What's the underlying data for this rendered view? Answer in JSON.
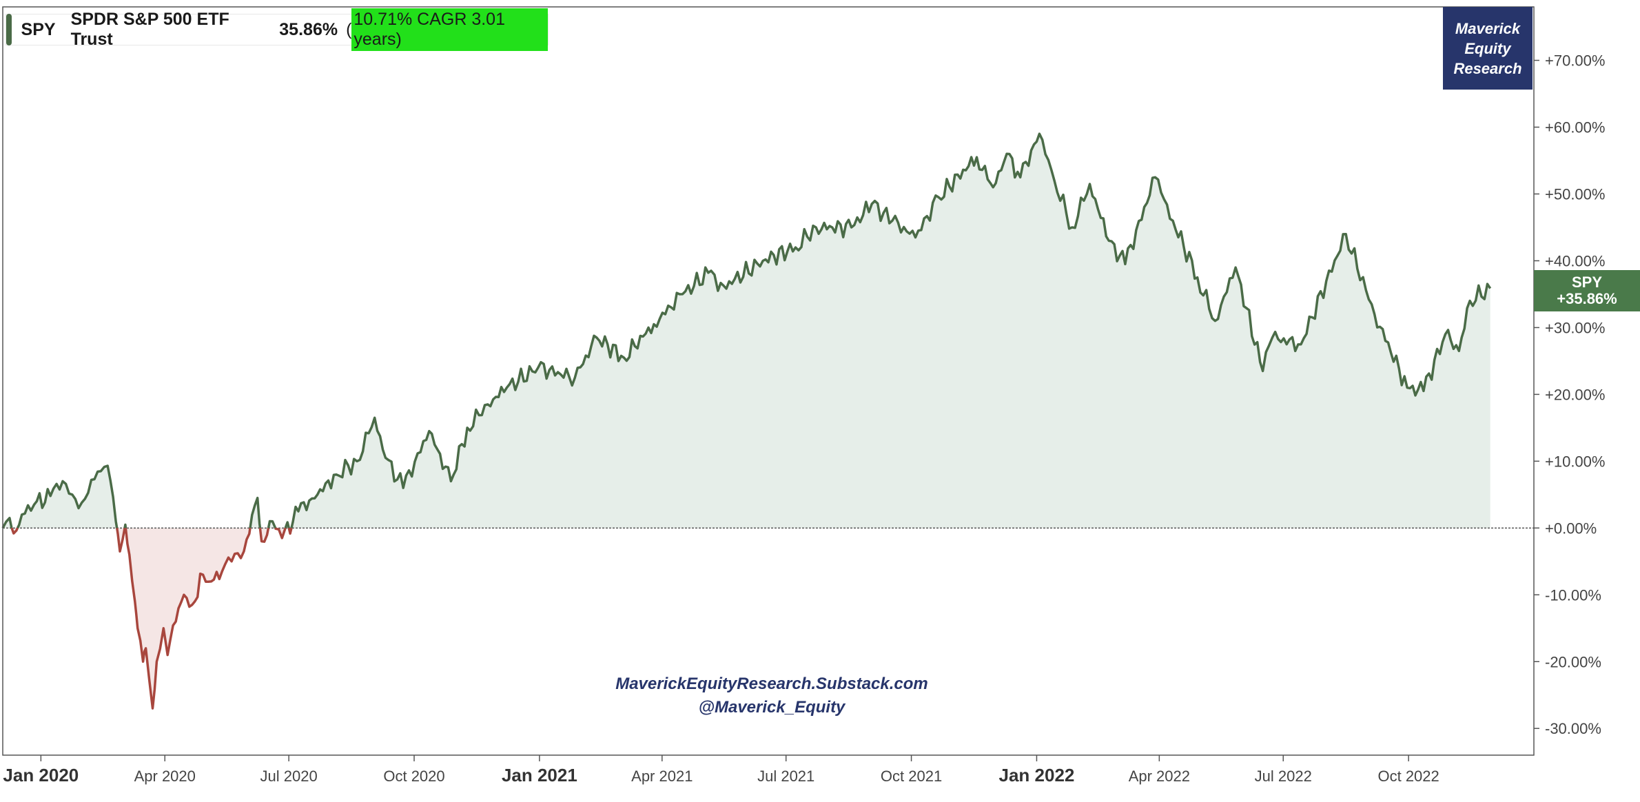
{
  "legend": {
    "symbol": "SPY",
    "name": "SPDR S&P 500 ETF Trust",
    "total_return": "35.86%",
    "cagr_open": "(",
    "cagr_text": "10.71% CAGR 3.01 years",
    "cagr_close": ")"
  },
  "logo": {
    "line1": "Maverick",
    "line2": "Equity",
    "line3": "Research"
  },
  "end_label": {
    "symbol": "SPY",
    "value": "+35.86%"
  },
  "watermark": {
    "line1": "MaverickEquityResearch.Substack.com",
    "line2": "@Maverick_Equity"
  },
  "colors": {
    "positive_line": "#4a6b47",
    "positive_fill": "#e6eee9",
    "negative_line": "#a8463d",
    "negative_fill": "#f5e6e5",
    "logo_bg": "#27356b",
    "cagr_highlight": "#22e01a",
    "end_label_bg": "#4a7a4a"
  },
  "chart_data": {
    "type": "area",
    "x_type": "date",
    "ylim": [
      -34,
      78
    ],
    "xlim": [
      "2019-12-04",
      "2023-01-01"
    ],
    "y_ticks": [
      70,
      60,
      50,
      40,
      30,
      20,
      10,
      0,
      -10,
      -20,
      -30
    ],
    "y_tick_labels": [
      "+70.00%",
      "+60.00%",
      "+50.00%",
      "+40.00%",
      "+30.00%",
      "+20.00%",
      "+10.00%",
      "+0.00%",
      "-10.00%",
      "-20.00%",
      "-30.00%"
    ],
    "x_ticks": [
      {
        "date": "2020-01-01",
        "label": "Jan 2020",
        "major": true
      },
      {
        "date": "2020-04-01",
        "label": "Apr 2020",
        "major": false
      },
      {
        "date": "2020-07-01",
        "label": "Jul 2020",
        "major": false
      },
      {
        "date": "2020-10-01",
        "label": "Oct 2020",
        "major": false
      },
      {
        "date": "2021-01-01",
        "label": "Jan 2021",
        "major": true
      },
      {
        "date": "2021-04-01",
        "label": "Apr 2021",
        "major": false
      },
      {
        "date": "2021-07-01",
        "label": "Jul 2021",
        "major": false
      },
      {
        "date": "2021-10-01",
        "label": "Oct 2021",
        "major": false
      },
      {
        "date": "2022-01-01",
        "label": "Jan 2022",
        "major": true
      },
      {
        "date": "2022-04-01",
        "label": "Apr 2022",
        "major": false
      },
      {
        "date": "2022-07-01",
        "label": "Jul 2022",
        "major": false
      },
      {
        "date": "2022-10-01",
        "label": "Oct 2022",
        "major": false
      }
    ],
    "series": [
      {
        "name": "SPY",
        "points": [
          [
            "2019-12-04",
            0.0
          ],
          [
            "2019-12-09",
            1.5
          ],
          [
            "2019-12-12",
            -0.8
          ],
          [
            "2019-12-18",
            2.0
          ],
          [
            "2019-12-27",
            3.5
          ],
          [
            "2020-01-08",
            4.8
          ],
          [
            "2020-01-17",
            7.0
          ],
          [
            "2020-01-24",
            5.0
          ],
          [
            "2020-01-31",
            3.8
          ],
          [
            "2020-02-07",
            7.2
          ],
          [
            "2020-02-14",
            8.5
          ],
          [
            "2020-02-19",
            9.3
          ],
          [
            "2020-02-25",
            1.0
          ],
          [
            "2020-02-28",
            -3.5
          ],
          [
            "2020-03-03",
            0.5
          ],
          [
            "2020-03-06",
            -4.0
          ],
          [
            "2020-03-10",
            -11.0
          ],
          [
            "2020-03-12",
            -15.0
          ],
          [
            "2020-03-16",
            -20.0
          ],
          [
            "2020-03-18",
            -18.0
          ],
          [
            "2020-03-23",
            -27.0
          ],
          [
            "2020-03-26",
            -20.0
          ],
          [
            "2020-03-31",
            -15.0
          ],
          [
            "2020-04-03",
            -19.0
          ],
          [
            "2020-04-09",
            -14.0
          ],
          [
            "2020-04-15",
            -10.0
          ],
          [
            "2020-04-21",
            -11.5
          ],
          [
            "2020-04-29",
            -7.0
          ],
          [
            "2020-05-05",
            -8.0
          ],
          [
            "2020-05-13",
            -6.5
          ],
          [
            "2020-05-20",
            -5.0
          ],
          [
            "2020-05-29",
            -3.5
          ],
          [
            "2020-06-08",
            4.5
          ],
          [
            "2020-06-11",
            -2.0
          ],
          [
            "2020-06-19",
            1.0
          ],
          [
            "2020-06-26",
            -1.5
          ],
          [
            "2020-07-08",
            2.5
          ],
          [
            "2020-07-22",
            5.0
          ],
          [
            "2020-08-05",
            8.0
          ],
          [
            "2020-08-20",
            10.0
          ],
          [
            "2020-09-02",
            16.5
          ],
          [
            "2020-09-10",
            10.5
          ],
          [
            "2020-09-23",
            6.0
          ],
          [
            "2020-10-12",
            14.5
          ],
          [
            "2020-10-28",
            7.0
          ],
          [
            "2020-11-09",
            15.0
          ],
          [
            "2020-11-24",
            18.5
          ],
          [
            "2020-12-08",
            21.0
          ],
          [
            "2020-12-31",
            24.0
          ],
          [
            "2021-01-27",
            22.5
          ],
          [
            "2021-02-12",
            28.5
          ],
          [
            "2021-03-04",
            25.5
          ],
          [
            "2021-03-26",
            30.5
          ],
          [
            "2021-04-16",
            35.0
          ],
          [
            "2021-05-07",
            38.5
          ],
          [
            "2021-05-12",
            35.5
          ],
          [
            "2021-06-14",
            40.0
          ],
          [
            "2021-07-08",
            42.0
          ],
          [
            "2021-07-23",
            45.0
          ],
          [
            "2021-08-18",
            45.0
          ],
          [
            "2021-09-02",
            48.5
          ],
          [
            "2021-09-17",
            46.0
          ],
          [
            "2021-10-04",
            43.5
          ],
          [
            "2021-10-21",
            49.5
          ],
          [
            "2021-11-18",
            55.5
          ],
          [
            "2021-11-30",
            51.0
          ],
          [
            "2021-12-10",
            56.0
          ],
          [
            "2021-12-20",
            52.5
          ],
          [
            "2022-01-03",
            59.0
          ],
          [
            "2022-01-14",
            52.0
          ],
          [
            "2022-01-27",
            45.0
          ],
          [
            "2022-02-09",
            51.5
          ],
          [
            "2022-02-23",
            43.0
          ],
          [
            "2022-03-07",
            39.5
          ],
          [
            "2022-03-29",
            52.5
          ],
          [
            "2022-04-11",
            46.0
          ],
          [
            "2022-04-29",
            37.5
          ],
          [
            "2022-05-12",
            31.0
          ],
          [
            "2022-05-27",
            39.0
          ],
          [
            "2022-06-16",
            23.5
          ],
          [
            "2022-06-23",
            28.5
          ],
          [
            "2022-07-14",
            27.5
          ],
          [
            "2022-08-16",
            44.0
          ],
          [
            "2022-09-06",
            32.0
          ],
          [
            "2022-09-30",
            21.0
          ],
          [
            "2022-10-12",
            20.5
          ],
          [
            "2022-10-28",
            29.0
          ],
          [
            "2022-11-07",
            26.5
          ],
          [
            "2022-11-15",
            34.0
          ],
          [
            "2022-11-30",
            35.86
          ]
        ]
      }
    ]
  }
}
